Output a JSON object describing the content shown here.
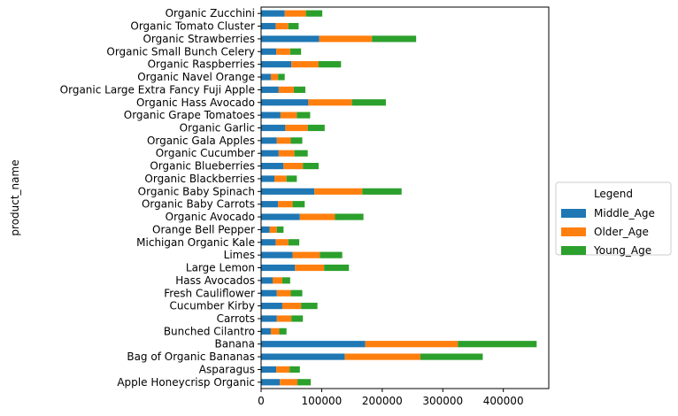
{
  "chart_data": {
    "type": "bar",
    "orientation": "horizontal",
    "stacked": true,
    "title": "",
    "xlabel": "",
    "ylabel": "product_name",
    "xlim": [
      0,
      475000
    ],
    "xticks": [
      0,
      100000,
      200000,
      300000,
      400000
    ],
    "xtick_labels": [
      "0",
      "100000",
      "200000",
      "300000",
      "400000"
    ],
    "grid": false,
    "legend": {
      "title": "Legend",
      "placement": "center-right outside"
    },
    "categories": [
      "Apple Honeycrisp Organic",
      "Asparagus",
      "Bag of Organic Bananas",
      "Banana",
      "Bunched Cilantro",
      "Carrots",
      "Cucumber Kirby",
      "Fresh Cauliflower",
      "Hass Avocados",
      "Large Lemon",
      "Limes",
      "Michigan Organic Kale",
      "Orange Bell Pepper",
      "Organic Avocado",
      "Organic Baby Carrots",
      "Organic Baby Spinach",
      "Organic Blackberries",
      "Organic Blueberries",
      "Organic Cucumber",
      "Organic Gala Apples",
      "Organic Garlic",
      "Organic Grape Tomatoes",
      "Organic Hass Avocado",
      "Organic Large Extra Fancy Fuji Apple",
      "Organic Navel Orange",
      "Organic Raspberries",
      "Organic Small Bunch Celery",
      "Organic Strawberries",
      "Organic Tomato Cluster",
      "Organic Zucchini"
    ],
    "series": [
      {
        "name": "Middle_Age",
        "color": "#1f77b4",
        "values": [
          31000,
          25000,
          138000,
          172000,
          16000,
          26000,
          35000,
          26000,
          19000,
          56000,
          52000,
          24000,
          14000,
          64000,
          28000,
          88000,
          22000,
          37000,
          29000,
          26000,
          40000,
          32000,
          78000,
          29000,
          16000,
          50000,
          25000,
          96000,
          24000,
          39000
        ]
      },
      {
        "name": "Older_Age",
        "color": "#ff7f0e",
        "values": [
          29000,
          22000,
          125000,
          153000,
          14000,
          24000,
          31000,
          23000,
          16000,
          48000,
          45000,
          21000,
          12000,
          58000,
          24000,
          79000,
          20000,
          32000,
          26000,
          23000,
          37000,
          27000,
          72000,
          25000,
          12000,
          45000,
          23000,
          87000,
          21000,
          35000
        ]
      },
      {
        "name": "Young_Age",
        "color": "#2ca02c",
        "values": [
          22000,
          17000,
          103000,
          130000,
          12000,
          19000,
          27000,
          19000,
          13000,
          41000,
          37000,
          18000,
          11000,
          47000,
          20000,
          65000,
          17000,
          26000,
          22000,
          19000,
          28000,
          22000,
          56000,
          19000,
          11000,
          37000,
          18000,
          73000,
          17000,
          27000
        ]
      }
    ]
  }
}
